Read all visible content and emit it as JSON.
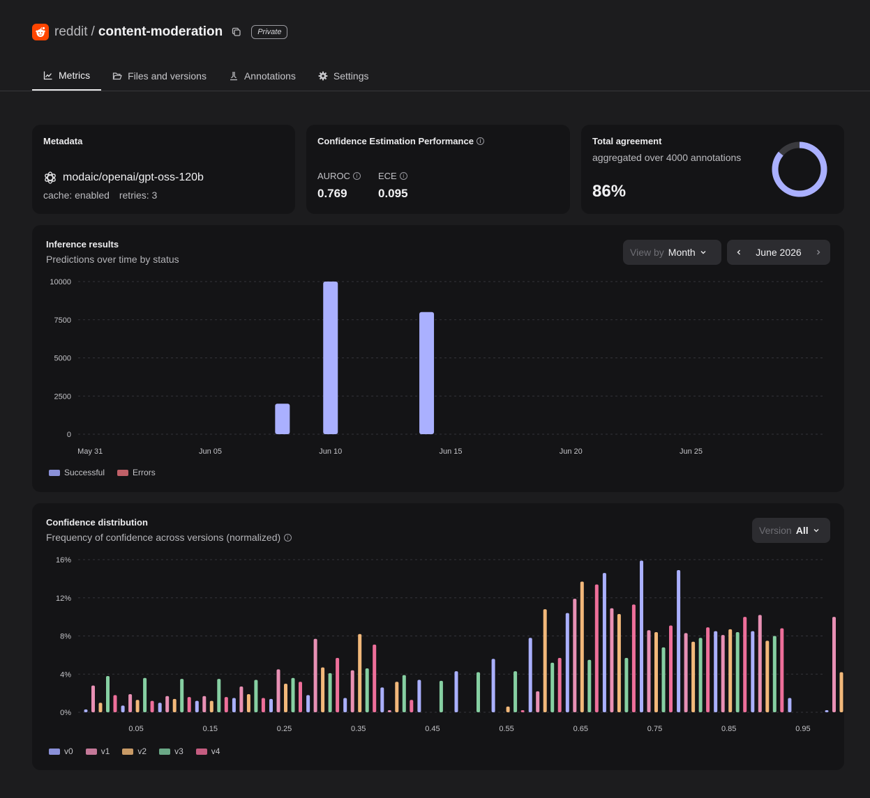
{
  "header": {
    "owner": "reddit",
    "separator": "/",
    "repo": "content-moderation",
    "badge": "Private",
    "icons": [
      "reddit-logo-icon",
      "copy-icon"
    ]
  },
  "tabs": [
    {
      "label": "Metrics",
      "icon": "chart-line-icon",
      "active": true
    },
    {
      "label": "Files and versions",
      "icon": "folder-open-icon",
      "active": false
    },
    {
      "label": "Annotations",
      "icon": "annotation-icon",
      "active": false
    },
    {
      "label": "Settings",
      "icon": "gear-icon",
      "active": false
    }
  ],
  "metadata": {
    "title": "Metadata",
    "model": "modaic/openai/gpt-oss-120b",
    "cache": "cache: enabled",
    "retries": "retries: 3"
  },
  "confidence_perf": {
    "title": "Confidence Estimation Performance",
    "auroc_label": "AUROC",
    "auroc_value": "0.769",
    "ece_label": "ECE",
    "ece_value": "0.095"
  },
  "agreement": {
    "title": "Total agreement",
    "subtitle": "aggregated over 4000 annotations",
    "value": "86%",
    "fraction": 0.86
  },
  "inference": {
    "title": "Inference results",
    "subtitle": "Predictions over time by status",
    "view_by_label": "View by",
    "view_by_value": "Month",
    "month": "June 2026",
    "colors": {
      "Successful": "#aab0ff",
      "Errors": "#e06a72"
    },
    "legend_colors": {
      "Successful": "#8a90d8",
      "Errors": "#c06068"
    }
  },
  "confidence_dist": {
    "title": "Confidence distribution",
    "subtitle": "Frequency of confidence across versions (normalized)",
    "version_label": "Version",
    "version_value": "All",
    "colors": [
      "#aab0ff",
      "#e890b4",
      "#f2b87a",
      "#86cfa2",
      "#ee6f9a"
    ],
    "legend_colors": [
      "#8a90d8",
      "#c47898",
      "#c89a66",
      "#6aa886",
      "#c45c80"
    ]
  },
  "chart_data": [
    {
      "type": "bar",
      "x": [
        "May 31",
        "Jun 01",
        "Jun 02",
        "Jun 03",
        "Jun 04",
        "Jun 05",
        "Jun 06",
        "Jun 07",
        "Jun 08",
        "Jun 09",
        "Jun 10",
        "Jun 11",
        "Jun 12",
        "Jun 13",
        "Jun 14",
        "Jun 15",
        "Jun 16",
        "Jun 17",
        "Jun 18",
        "Jun 19",
        "Jun 20",
        "Jun 21",
        "Jun 22",
        "Jun 23",
        "Jun 24",
        "Jun 25",
        "Jun 26",
        "Jun 27",
        "Jun 28",
        "Jun 29",
        "Jun 30"
      ],
      "x_tick_labels": [
        "May 31",
        "Jun 05",
        "Jun 10",
        "Jun 15",
        "Jun 20",
        "Jun 25"
      ],
      "series": [
        {
          "name": "Successful",
          "values": [
            0,
            0,
            0,
            0,
            0,
            0,
            0,
            0,
            2000,
            0,
            10000,
            0,
            0,
            0,
            8000,
            0,
            0,
            0,
            0,
            0,
            0,
            0,
            0,
            0,
            0,
            0,
            0,
            0,
            0,
            0,
            0
          ]
        },
        {
          "name": "Errors",
          "values": [
            0,
            0,
            0,
            0,
            0,
            0,
            0,
            0,
            0,
            0,
            0,
            0,
            0,
            0,
            0,
            0,
            0,
            0,
            0,
            0,
            0,
            0,
            0,
            0,
            0,
            0,
            0,
            0,
            0,
            0,
            0
          ]
        }
      ],
      "y_ticks": [
        "0",
        "2500",
        "5000",
        "7500",
        "10000"
      ],
      "ylim": [
        0,
        10000
      ],
      "grid": true,
      "legend": "bottom-left"
    },
    {
      "type": "bar",
      "x": [
        0.0,
        0.05,
        0.1,
        0.15,
        0.2,
        0.25,
        0.3,
        0.35,
        0.4,
        0.45,
        0.5,
        0.55,
        0.6,
        0.65,
        0.7,
        0.75,
        0.8,
        0.85,
        0.9,
        0.95,
        1.0
      ],
      "x_tick_labels": [
        "0.05",
        "0.15",
        "0.25",
        "0.35",
        "0.45",
        "0.55",
        "0.65",
        "0.75",
        "0.85",
        "0.95"
      ],
      "series": [
        {
          "name": "v0",
          "values": [
            0.3,
            0.7,
            1.0,
            1.2,
            1.5,
            1.4,
            1.8,
            1.5,
            2.6,
            3.4,
            4.3,
            5.6,
            7.8,
            10.4,
            14.6,
            15.9,
            14.9,
            8.5,
            8.5,
            1.5,
            0.1
          ]
        },
        {
          "name": "v1",
          "values": [
            2.8,
            1.9,
            1.7,
            1.7,
            2.7,
            4.5,
            7.7,
            4.4,
            0.1,
            0.0,
            0.0,
            0.0,
            2.2,
            11.9,
            10.9,
            8.6,
            8.3,
            8.1,
            10.2,
            0.0,
            10.0
          ]
        },
        {
          "name": "v2",
          "values": [
            1.0,
            1.3,
            1.4,
            1.2,
            1.9,
            3.0,
            4.7,
            8.2,
            3.2,
            0.0,
            0.0,
            0.6,
            10.8,
            13.7,
            10.3,
            8.4,
            7.4,
            8.7,
            7.5,
            0.0,
            4.2
          ]
        },
        {
          "name": "v3",
          "values": [
            3.8,
            3.6,
            3.5,
            3.5,
            3.4,
            3.6,
            4.1,
            4.6,
            3.9,
            3.3,
            4.2,
            4.3,
            5.2,
            5.5,
            5.7,
            6.8,
            7.8,
            8.4,
            8.0,
            0.0,
            4.2
          ]
        },
        {
          "name": "v4",
          "values": [
            1.8,
            1.2,
            1.6,
            1.6,
            1.5,
            3.2,
            5.7,
            7.1,
            1.3,
            0.0,
            0.0,
            0.1,
            5.7,
            13.4,
            11.3,
            9.1,
            8.9,
            10.0,
            8.8,
            0.0,
            5.2
          ]
        }
      ],
      "y_ticks": [
        "0%",
        "4%",
        "8%",
        "12%",
        "16%"
      ],
      "ylim": [
        0,
        16
      ],
      "grid": true,
      "legend": "bottom-left"
    }
  ]
}
